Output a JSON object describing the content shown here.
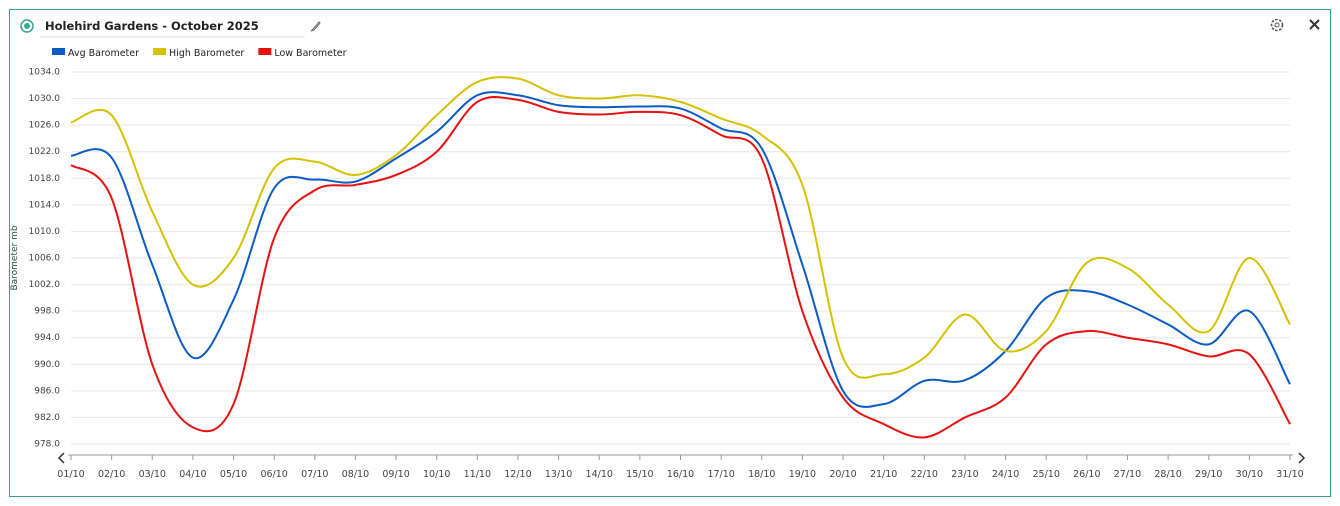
{
  "chart_data": {
    "type": "line",
    "title": "Holehird Gardens - October 2025",
    "y_label": "Barometer mb",
    "categories": [
      "01/10",
      "02/10",
      "03/10",
      "04/10",
      "05/10",
      "06/10",
      "07/10",
      "08/10",
      "09/10",
      "10/10",
      "11/10",
      "12/10",
      "13/10",
      "14/10",
      "15/10",
      "16/10",
      "17/10",
      "18/10",
      "19/10",
      "20/10",
      "21/10",
      "22/10",
      "23/10",
      "24/10",
      "25/10",
      "26/10",
      "27/10",
      "28/10",
      "29/10",
      "30/10",
      "31/10"
    ],
    "series": [
      {
        "name": "Avg Barometer",
        "color": "#0a5cc2",
        "values": [
          1021.4,
          1021.1,
          1005,
          991,
          999.7,
          1016.5,
          1017.8,
          1017.5,
          1021,
          1025,
          1030.5,
          1030.5,
          1029,
          1028.7,
          1028.8,
          1028.5,
          1025.5,
          1022.5,
          1005,
          986,
          984,
          987.5,
          987.6,
          992,
          1000,
          1001,
          999,
          996,
          993,
          998,
          987
        ]
      },
      {
        "name": "High Barometer",
        "color": "#d4c200",
        "values": [
          1026.4,
          1027.5,
          1013,
          1002,
          1006,
          1019.5,
          1020.5,
          1018.5,
          1021.5,
          1027.5,
          1032.5,
          1033,
          1030.5,
          1030,
          1030.5,
          1029.5,
          1027,
          1024.5,
          1017,
          991,
          988.5,
          991,
          997.5,
          992,
          995,
          1005.3,
          1004.5,
          999,
          995,
          1006,
          996
        ]
      },
      {
        "name": "Low Barometer",
        "color": "#e81010",
        "values": [
          1020,
          1015,
          990,
          980.5,
          984,
          1009,
          1016.2,
          1017,
          1018.5,
          1022,
          1029.5,
          1029.8,
          1028,
          1027.6,
          1028,
          1027.5,
          1024.5,
          1021,
          998,
          985,
          981,
          979,
          982,
          985,
          993,
          995,
          994,
          993,
          991.2,
          991.5,
          981
        ]
      }
    ],
    "ylim": [
      978,
      1034
    ],
    "yticks": [
      {
        "value": 978,
        "label": "978.0"
      },
      {
        "value": 982,
        "label": "982.0"
      },
      {
        "value": 986,
        "label": "986.0"
      },
      {
        "value": 990,
        "label": "990.0"
      },
      {
        "value": 994,
        "label": "994.0"
      },
      {
        "value": 998,
        "label": "998.0"
      },
      {
        "value": 1002,
        "label": "1002.0"
      },
      {
        "value": 1006,
        "label": "1006.0"
      },
      {
        "value": 1010,
        "label": "1010.0"
      },
      {
        "value": 1014,
        "label": "1014.0"
      },
      {
        "value": 1018,
        "label": "1018.0"
      },
      {
        "value": 1022,
        "label": "1022.0"
      },
      {
        "value": 1026,
        "label": "1026.0"
      },
      {
        "value": 1030,
        "label": "1030.0"
      },
      {
        "value": 1034,
        "label": "1034.0"
      }
    ],
    "grid": true
  }
}
